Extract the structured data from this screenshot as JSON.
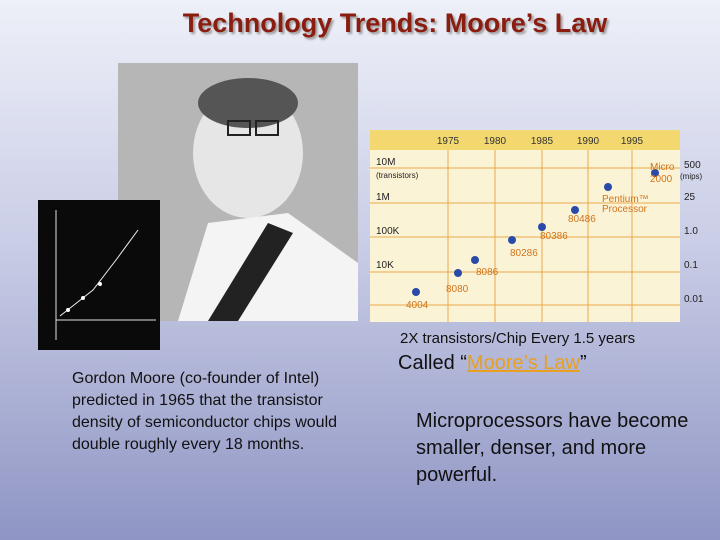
{
  "title": "Technology Trends: Moore’s Law",
  "figure": {
    "years": [
      "1975",
      "1980",
      "1985",
      "1990",
      "1995"
    ],
    "left_axis": {
      "labels": [
        "10M",
        "1M",
        "100K",
        "10K"
      ],
      "unit": "(transistors)"
    },
    "right_axis": {
      "labels": [
        "500",
        "25",
        "1.0",
        "0.1",
        "0.01"
      ],
      "unit": "(mips)"
    },
    "chips": [
      "4004",
      "8080",
      "8086",
      "80286",
      "80386",
      "80486",
      "Pentium™",
      "Processor",
      "Micro",
      "2000"
    ]
  },
  "caption": "2X transistors/Chip Every 1.5 years",
  "called": {
    "before": "Called “",
    "link": "Moore’s Law",
    "after": "”"
  },
  "left_text": "Gordon Moore (co-founder of Intel) predicted in 1965 that the transistor density of semiconductor chips would double roughly every 18 months.",
  "right_text": "Microprocessors have become smaller, denser, and more powerful."
}
